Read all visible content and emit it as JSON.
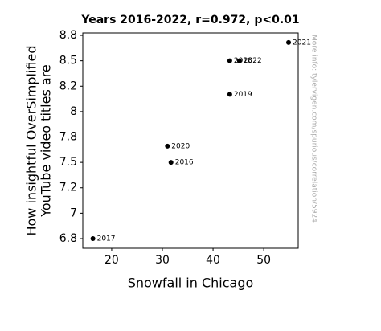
{
  "chart_data": {
    "type": "scatter",
    "title": "Years 2016-2022, r=0.972, p<0.01",
    "xlabel": "Snowfall in Chicago",
    "ylabel": [
      "How insightful OverSimplified",
      "YouTube video titles are"
    ],
    "watermark": "More info: tylervigen.com/spurious/correlation/5924",
    "point_labels": [
      "2016",
      "2017",
      "2018",
      "2019",
      "2020",
      "2021",
      "2022"
    ],
    "x": [
      31.7,
      16.3,
      43.3,
      43.3,
      31.0,
      54.9,
      45.2
    ],
    "values": [
      7.5,
      6.75,
      8.5,
      8.17,
      7.66,
      8.68,
      8.5
    ],
    "color": "#000000",
    "xlim": [
      14.3,
      56.8
    ],
    "xticks": [
      20,
      30,
      40,
      50
    ],
    "ylim": [
      6.655,
      8.774
    ],
    "yticks": [
      {
        "value": 6.75,
        "label": "6.8"
      },
      7,
      {
        "value": 7.25,
        "label": "7.2"
      },
      7.5,
      {
        "value": 7.75,
        "label": "7.8"
      },
      8,
      {
        "value": 8.25,
        "label": "8.2"
      },
      8.5,
      {
        "value": 8.75,
        "label": "8.8"
      }
    ],
    "grid": false
  }
}
